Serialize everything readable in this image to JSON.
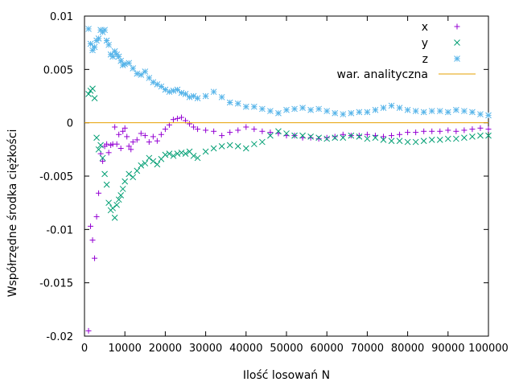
{
  "chart_data": {
    "type": "scatter",
    "title": "",
    "xlabel": "Ilość losowań N",
    "ylabel": "Współrzędne środka ciężkości",
    "xlim": [
      0,
      100000
    ],
    "ylim": [
      -0.02,
      0.01
    ],
    "x_ticks": [
      0,
      10000,
      20000,
      30000,
      40000,
      50000,
      60000,
      70000,
      80000,
      90000,
      100000
    ],
    "x_tick_labels": [
      "0",
      "10000",
      "20000",
      "30000",
      "40000",
      "50000",
      "60000",
      "70000",
      "80000",
      "90000",
      "100000"
    ],
    "y_ticks": [
      0.01,
      0.005,
      0,
      -0.005,
      -0.01,
      -0.015,
      -0.02
    ],
    "y_tick_labels": [
      "0.01",
      "0.005",
      "0",
      "-0.005",
      "-0.01",
      "-0.015",
      "-0.02"
    ],
    "grid": false,
    "legend_position": "top-right",
    "series": [
      {
        "name": "x",
        "marker": "plus",
        "color": "#9400d3",
        "points": [
          [
            1000,
            -0.0195
          ],
          [
            1500,
            -0.0097
          ],
          [
            2000,
            -0.011
          ],
          [
            2500,
            -0.0127
          ],
          [
            3000,
            -0.0088
          ],
          [
            3500,
            -0.0066
          ],
          [
            4000,
            -0.0029
          ],
          [
            4500,
            -0.0036
          ],
          [
            5000,
            -0.0022
          ],
          [
            5500,
            -0.002
          ],
          [
            6000,
            -0.0028
          ],
          [
            6500,
            -0.0021
          ],
          [
            7000,
            -0.002
          ],
          [
            7500,
            -0.0004
          ],
          [
            8000,
            -0.002
          ],
          [
            8500,
            -0.0011
          ],
          [
            9000,
            -0.0024
          ],
          [
            9500,
            -0.0008
          ],
          [
            10000,
            -0.0005
          ],
          [
            10500,
            -0.0013
          ],
          [
            11000,
            -0.0022
          ],
          [
            11500,
            -0.0025
          ],
          [
            12000,
            -0.0018
          ],
          [
            13000,
            -0.0016
          ],
          [
            14000,
            -0.001
          ],
          [
            15000,
            -0.0012
          ],
          [
            16000,
            -0.0018
          ],
          [
            17000,
            -0.0013
          ],
          [
            18000,
            -0.0017
          ],
          [
            19000,
            -0.0011
          ],
          [
            20000,
            -0.0006
          ],
          [
            21000,
            -0.0002
          ],
          [
            22000,
            0.0003
          ],
          [
            23000,
            0.0004
          ],
          [
            24000,
            0.0005
          ],
          [
            25000,
            0.0002
          ],
          [
            26000,
            -0.0001
          ],
          [
            27000,
            -0.0004
          ],
          [
            28000,
            -0.0006
          ],
          [
            30000,
            -0.0007
          ],
          [
            32000,
            -0.0008
          ],
          [
            34000,
            -0.0012
          ],
          [
            36000,
            -0.0009
          ],
          [
            38000,
            -0.0007
          ],
          [
            40000,
            -0.0004
          ],
          [
            42000,
            -0.0006
          ],
          [
            44000,
            -0.0008
          ],
          [
            46000,
            -0.0009
          ],
          [
            48000,
            -0.001
          ],
          [
            50000,
            -0.0012
          ],
          [
            52000,
            -0.0012
          ],
          [
            54000,
            -0.0014
          ],
          [
            56000,
            -0.0014
          ],
          [
            58000,
            -0.0015
          ],
          [
            60000,
            -0.0014
          ],
          [
            62000,
            -0.0013
          ],
          [
            64000,
            -0.0011
          ],
          [
            66000,
            -0.0012
          ],
          [
            68000,
            -0.0012
          ],
          [
            70000,
            -0.0011
          ],
          [
            72000,
            -0.0012
          ],
          [
            74000,
            -0.0013
          ],
          [
            76000,
            -0.0012
          ],
          [
            78000,
            -0.0011
          ],
          [
            80000,
            -0.0009
          ],
          [
            82000,
            -0.0009
          ],
          [
            84000,
            -0.0008
          ],
          [
            86000,
            -0.0008
          ],
          [
            88000,
            -0.0008
          ],
          [
            90000,
            -0.0007
          ],
          [
            92000,
            -0.0008
          ],
          [
            94000,
            -0.0007
          ],
          [
            96000,
            -0.0006
          ],
          [
            98000,
            -0.0005
          ],
          [
            100000,
            -0.0006
          ]
        ]
      },
      {
        "name": "y",
        "marker": "cross",
        "color": "#009e73",
        "points": [
          [
            1000,
            0.0027
          ],
          [
            1500,
            0.003
          ],
          [
            2000,
            0.0032
          ],
          [
            2500,
            0.0023
          ],
          [
            3000,
            -0.0014
          ],
          [
            3500,
            -0.0025
          ],
          [
            4000,
            -0.0021
          ],
          [
            4500,
            -0.0033
          ],
          [
            5000,
            -0.0048
          ],
          [
            5500,
            -0.0058
          ],
          [
            6000,
            -0.0075
          ],
          [
            6500,
            -0.0082
          ],
          [
            7000,
            -0.008
          ],
          [
            7500,
            -0.0089
          ],
          [
            8000,
            -0.0077
          ],
          [
            8500,
            -0.0072
          ],
          [
            9000,
            -0.0068
          ],
          [
            9500,
            -0.0062
          ],
          [
            10000,
            -0.0055
          ],
          [
            11000,
            -0.0048
          ],
          [
            12000,
            -0.0051
          ],
          [
            13000,
            -0.0045
          ],
          [
            14000,
            -0.004
          ],
          [
            15000,
            -0.0038
          ],
          [
            16000,
            -0.0033
          ],
          [
            17000,
            -0.0036
          ],
          [
            18000,
            -0.0039
          ],
          [
            19000,
            -0.0034
          ],
          [
            20000,
            -0.003
          ],
          [
            21000,
            -0.0029
          ],
          [
            22000,
            -0.0031
          ],
          [
            23000,
            -0.0029
          ],
          [
            24000,
            -0.0028
          ],
          [
            25000,
            -0.0029
          ],
          [
            26000,
            -0.0027
          ],
          [
            27000,
            -0.0031
          ],
          [
            28000,
            -0.0033
          ],
          [
            30000,
            -0.0027
          ],
          [
            32000,
            -0.0024
          ],
          [
            34000,
            -0.0022
          ],
          [
            36000,
            -0.0021
          ],
          [
            38000,
            -0.0022
          ],
          [
            40000,
            -0.0024
          ],
          [
            42000,
            -0.002
          ],
          [
            44000,
            -0.0018
          ],
          [
            46000,
            -0.0012
          ],
          [
            48000,
            -0.0008
          ],
          [
            50000,
            -0.001
          ],
          [
            52000,
            -0.0012
          ],
          [
            54000,
            -0.0012
          ],
          [
            56000,
            -0.0013
          ],
          [
            58000,
            -0.0014
          ],
          [
            60000,
            -0.0015
          ],
          [
            62000,
            -0.0014
          ],
          [
            64000,
            -0.0014
          ],
          [
            66000,
            -0.0012
          ],
          [
            68000,
            -0.0013
          ],
          [
            70000,
            -0.0015
          ],
          [
            72000,
            -0.0014
          ],
          [
            74000,
            -0.0016
          ],
          [
            76000,
            -0.0017
          ],
          [
            78000,
            -0.0017
          ],
          [
            80000,
            -0.0018
          ],
          [
            82000,
            -0.0018
          ],
          [
            84000,
            -0.0017
          ],
          [
            86000,
            -0.0016
          ],
          [
            88000,
            -0.0016
          ],
          [
            90000,
            -0.0015
          ],
          [
            92000,
            -0.0015
          ],
          [
            94000,
            -0.0014
          ],
          [
            96000,
            -0.0013
          ],
          [
            98000,
            -0.0012
          ],
          [
            100000,
            -0.0012
          ]
        ]
      },
      {
        "name": "z",
        "marker": "star",
        "color": "#56b4e9",
        "points": [
          [
            1000,
            0.0088
          ],
          [
            1500,
            0.0074
          ],
          [
            2000,
            0.0068
          ],
          [
            2500,
            0.0071
          ],
          [
            3000,
            0.0077
          ],
          [
            3500,
            0.0079
          ],
          [
            4000,
            0.0087
          ],
          [
            4500,
            0.0085
          ],
          [
            5000,
            0.0087
          ],
          [
            5500,
            0.0077
          ],
          [
            6000,
            0.0073
          ],
          [
            6500,
            0.0064
          ],
          [
            7000,
            0.0062
          ],
          [
            7500,
            0.0067
          ],
          [
            8000,
            0.0064
          ],
          [
            8500,
            0.0062
          ],
          [
            9000,
            0.0058
          ],
          [
            9500,
            0.0054
          ],
          [
            10000,
            0.0055
          ],
          [
            11000,
            0.0056
          ],
          [
            12000,
            0.0051
          ],
          [
            13000,
            0.0046
          ],
          [
            14000,
            0.0045
          ],
          [
            15000,
            0.0048
          ],
          [
            16000,
            0.0042
          ],
          [
            17000,
            0.0038
          ],
          [
            18000,
            0.0036
          ],
          [
            19000,
            0.0034
          ],
          [
            20000,
            0.0031
          ],
          [
            21000,
            0.0029
          ],
          [
            22000,
            0.003
          ],
          [
            23000,
            0.0031
          ],
          [
            24000,
            0.0028
          ],
          [
            25000,
            0.0027
          ],
          [
            26000,
            0.0024
          ],
          [
            27000,
            0.0025
          ],
          [
            28000,
            0.0023
          ],
          [
            30000,
            0.0025
          ],
          [
            32000,
            0.0029
          ],
          [
            34000,
            0.0024
          ],
          [
            36000,
            0.0019
          ],
          [
            38000,
            0.0018
          ],
          [
            40000,
            0.0015
          ],
          [
            42000,
            0.0015
          ],
          [
            44000,
            0.0013
          ],
          [
            46000,
            0.0011
          ],
          [
            48000,
            0.0009
          ],
          [
            50000,
            0.0012
          ],
          [
            52000,
            0.0013
          ],
          [
            54000,
            0.0014
          ],
          [
            56000,
            0.0012
          ],
          [
            58000,
            0.0013
          ],
          [
            60000,
            0.0011
          ],
          [
            62000,
            0.0009
          ],
          [
            64000,
            0.0008
          ],
          [
            66000,
            0.0009
          ],
          [
            68000,
            0.001
          ],
          [
            70000,
            0.001
          ],
          [
            72000,
            0.0012
          ],
          [
            74000,
            0.0014
          ],
          [
            76000,
            0.0016
          ],
          [
            78000,
            0.0014
          ],
          [
            80000,
            0.0012
          ],
          [
            82000,
            0.0011
          ],
          [
            84000,
            0.001
          ],
          [
            86000,
            0.0011
          ],
          [
            88000,
            0.0011
          ],
          [
            90000,
            0.001
          ],
          [
            92000,
            0.0012
          ],
          [
            94000,
            0.0011
          ],
          [
            96000,
            0.001
          ],
          [
            98000,
            0.0008
          ],
          [
            100000,
            0.0007
          ]
        ]
      },
      {
        "name": "war. analityczna",
        "marker": "line",
        "color": "#e6a000",
        "points": [
          [
            0,
            0
          ],
          [
            100000,
            0
          ]
        ]
      }
    ]
  }
}
